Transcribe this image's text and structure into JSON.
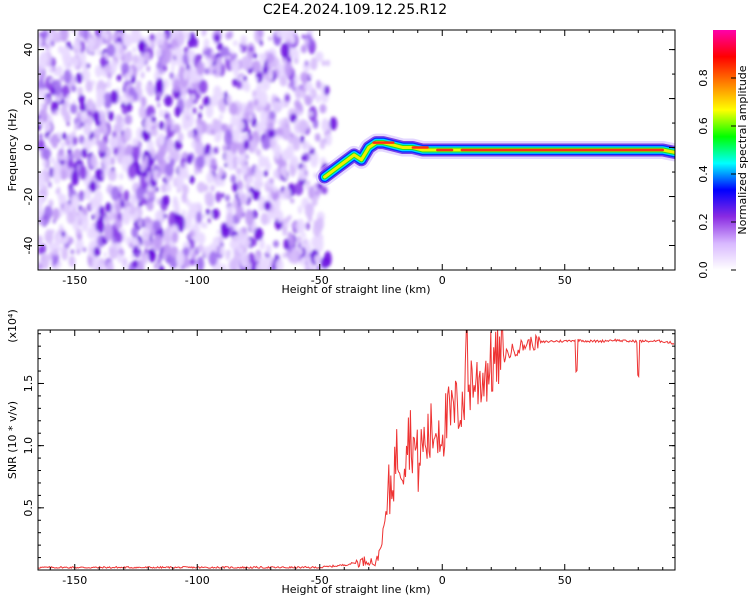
{
  "figure": {
    "title": "C2E4.2024.109.12.25.R12"
  },
  "chart_data": [
    {
      "type": "heatmap",
      "xlabel": "Height of straight line (km)",
      "ylabel": "Frequency (Hz)",
      "xlim": [
        -165,
        95
      ],
      "ylim": [
        -50,
        48
      ],
      "xticks": [
        -150,
        -100,
        -50,
        0,
        50
      ],
      "yticks": [
        -40,
        -20,
        0,
        20,
        40
      ],
      "noise_region_x": [
        -165,
        -45
      ],
      "ridge": {
        "x": [
          -48,
          -44,
          -40,
          -36,
          -33,
          -30,
          -27,
          -24,
          -20,
          -16,
          -12,
          -8,
          -4,
          0,
          5,
          10,
          20,
          30,
          40,
          50,
          60,
          70,
          80,
          90,
          95
        ],
        "y": [
          -12,
          -9,
          -6,
          -3,
          -5,
          0,
          2,
          2,
          1,
          0,
          0,
          -1,
          -1,
          -1,
          -1,
          -1,
          -1,
          -1,
          -1,
          -1,
          -1,
          -1,
          -1,
          -1,
          -2
        ]
      },
      "colorbar": {
        "label": "Normalized spectral amplitude",
        "range": [
          0,
          1
        ],
        "ticks": [
          "0.0",
          "0.2",
          "0.4",
          "0.6",
          "0.8"
        ],
        "colors": [
          "#ffffff",
          "#d8b8ff",
          "#8a2be2",
          "#0000ff",
          "#00ffff",
          "#00ff00",
          "#ffff00",
          "#ff8000",
          "#ff0000",
          "#ff00aa"
        ]
      },
      "grid": false
    },
    {
      "type": "line",
      "xlabel": "Height of straight line (km)",
      "ylabel": "SNR (10 * v/v)",
      "scale_label": "(x10⁴)",
      "xlim": [
        -165,
        95
      ],
      "ylim": [
        0,
        1.93
      ],
      "xticks": [
        -150,
        -100,
        -50,
        0,
        50
      ],
      "yticks": [
        0.5,
        1.0,
        1.5
      ],
      "ytick_labels": [
        "0.5",
        "1.0",
        "1.5"
      ],
      "series": [
        {
          "color": "#ee3333",
          "x": [
            -165,
            -50,
            -45,
            -40,
            -35,
            -30,
            -27,
            -25,
            -22,
            -20,
            -18,
            -16,
            -14,
            -12,
            -10,
            -8,
            -6,
            -4,
            -2,
            0,
            2,
            4,
            6,
            8,
            10,
            12,
            14,
            16,
            18,
            20,
            25,
            30,
            35,
            40,
            45,
            50,
            55,
            60,
            65,
            70,
            75,
            80,
            85,
            90,
            95
          ],
          "y": [
            0.02,
            0.02,
            0.03,
            0.04,
            0.06,
            0.08,
            0.05,
            0.2,
            0.55,
            0.8,
            0.95,
            0.9,
            1.1,
            1.05,
            0.85,
            1.0,
            1.05,
            1.1,
            1.15,
            1.15,
            1.2,
            1.25,
            1.3,
            1.35,
            1.45,
            1.55,
            1.5,
            1.55,
            1.6,
            1.65,
            1.72,
            1.78,
            1.82,
            1.83,
            1.84,
            1.84,
            1.85,
            1.84,
            1.84,
            1.85,
            1.84,
            1.84,
            1.84,
            1.84,
            1.82
          ]
        }
      ],
      "grid": false
    }
  ]
}
